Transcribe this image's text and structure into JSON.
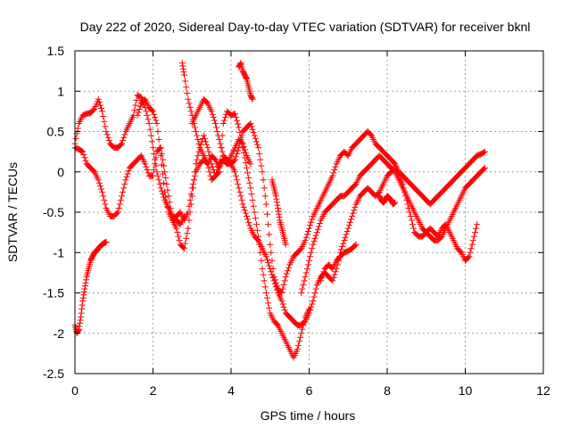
{
  "chart_data": {
    "type": "scatter",
    "title": "Day 222 of 2020, Sidereal Day-to-day VTEC variation (SDTVAR) for receiver bknl",
    "xlabel": "GPS time / hours",
    "ylabel": "SDTVAR / TECUs",
    "xlim": [
      0,
      12
    ],
    "ylim": [
      -2.5,
      1.5
    ],
    "xticks": [
      0,
      2,
      4,
      6,
      8,
      10,
      12
    ],
    "yticks": [
      -2.5,
      -2,
      -1.5,
      -1,
      -0.5,
      0,
      0.5,
      1,
      1.5
    ],
    "grid": true,
    "marker": "+",
    "color": "#ff0000",
    "series": [
      {
        "x": [
          0.0,
          0.1,
          0.2,
          0.3,
          0.4,
          0.5,
          0.6,
          0.7,
          0.8,
          0.9,
          1.0,
          1.1,
          1.2,
          1.3,
          1.4,
          1.5,
          1.6,
          1.7,
          1.8,
          1.9,
          2.0,
          2.1,
          2.2,
          2.3,
          2.4,
          2.5,
          2.6,
          2.7,
          2.8
        ],
        "y": [
          0.35,
          0.6,
          0.7,
          0.72,
          0.73,
          0.78,
          0.9,
          0.75,
          0.5,
          0.35,
          0.3,
          0.3,
          0.35,
          0.5,
          0.6,
          0.7,
          0.95,
          0.92,
          0.8,
          0.6,
          0.3,
          0.0,
          -0.2,
          -0.35,
          -0.45,
          -0.55,
          -0.6,
          -0.65,
          -0.55
        ]
      },
      {
        "x": [
          0.0,
          0.1,
          0.2,
          0.3,
          0.4,
          0.5,
          0.6,
          0.7,
          0.8,
          0.9,
          1.0,
          1.1,
          1.2,
          1.3,
          1.4,
          1.5,
          1.6,
          1.7,
          1.8,
          1.9,
          2.0,
          2.1,
          2.2,
          2.3,
          2.4,
          2.5,
          2.6,
          2.7,
          2.8,
          2.9,
          3.0,
          3.1,
          3.2,
          3.3,
          3.4,
          3.5,
          3.6,
          3.7,
          3.8,
          3.9,
          4.0,
          4.1,
          4.2,
          4.3,
          4.4,
          4.5,
          4.6,
          4.7,
          4.8,
          4.9,
          5.0,
          5.1,
          5.2,
          5.3,
          5.4,
          5.5,
          5.6,
          5.7,
          5.8,
          5.9,
          6.0
        ],
        "y": [
          0.3,
          0.28,
          0.25,
          0.1,
          0.05,
          0.0,
          -0.1,
          -0.25,
          -0.45,
          -0.55,
          -0.55,
          -0.5,
          -0.3,
          -0.1,
          0.05,
          0.1,
          0.15,
          0.2,
          0.1,
          -0.05,
          -0.05,
          0.25,
          0.3,
          0.0,
          -0.3,
          -0.6,
          -0.7,
          -0.9,
          -0.95,
          -0.7,
          -0.3,
          0.1,
          0.3,
          0.45,
          0.3,
          0.1,
          -0.05,
          0.0,
          0.6,
          0.75,
          0.7,
          0.72,
          0.55,
          0.3,
          0.05,
          -0.2,
          -0.5,
          -0.8,
          -1.2,
          -1.5,
          -1.75,
          -1.85,
          -1.9,
          -2.0,
          -2.1,
          -2.2,
          -2.3,
          -2.2,
          -2.0,
          -1.8,
          -1.7
        ]
      },
      {
        "x": [
          1.6,
          1.7,
          1.8,
          1.9,
          2.0,
          2.1,
          2.2,
          2.3,
          2.4,
          2.5,
          2.6,
          2.7,
          2.8,
          2.9,
          3.0,
          3.1,
          3.2,
          3.3,
          3.4,
          3.5,
          3.6,
          3.7,
          3.8,
          3.9,
          4.0,
          4.1,
          4.2,
          4.3,
          4.4,
          4.5
        ],
        "y": [
          0.7,
          0.85,
          0.9,
          0.8,
          0.75,
          0.6,
          0.2,
          -0.25,
          -0.5,
          -0.6,
          -0.55,
          -0.5,
          -0.6,
          -0.5,
          -0.2,
          0.0,
          0.1,
          0.15,
          0.1,
          0.2,
          0.15,
          0.05,
          0.15,
          0.1,
          0.2,
          0.3,
          0.4,
          0.35,
          0.2,
          0.1
        ]
      },
      {
        "x": [
          2.75,
          2.8,
          2.9,
          3.0,
          3.1,
          3.2,
          3.3,
          3.4,
          3.5,
          3.6,
          3.7,
          3.8,
          3.9,
          4.0,
          4.1,
          4.2,
          4.3,
          4.4,
          4.5,
          4.6,
          4.7,
          4.8,
          4.9,
          5.0,
          5.1,
          5.2,
          5.3,
          5.4,
          5.5,
          5.6,
          5.7,
          5.8,
          5.9,
          6.0,
          6.1,
          6.2,
          6.3,
          6.4,
          6.5,
          6.6,
          6.7,
          6.8,
          6.9,
          7.0,
          7.1,
          7.2,
          7.3,
          7.4,
          7.5,
          7.6,
          7.7,
          7.8,
          7.9,
          8.0,
          8.1,
          8.2,
          8.3,
          8.4,
          8.5,
          8.6,
          8.7,
          8.8,
          8.9,
          9.0,
          9.1,
          9.2,
          9.3,
          9.4,
          9.5,
          9.6,
          9.7,
          9.8,
          9.9,
          10.0,
          10.1,
          10.2,
          10.3
        ],
        "y": [
          1.35,
          1.2,
          0.9,
          0.7,
          0.5,
          0.3,
          0.2,
          0.1,
          -0.1,
          -0.05,
          0.1,
          0.15,
          0.1,
          0.1,
          0.0,
          -0.2,
          -0.4,
          -0.55,
          -0.7,
          -0.8,
          -0.85,
          -0.95,
          -1.05,
          -1.2,
          -1.35,
          -1.5,
          -1.6,
          -1.75,
          -1.8,
          -1.85,
          -1.9,
          -1.9,
          -1.85,
          -1.75,
          -1.6,
          -1.4,
          -1.3,
          -1.25,
          -1.3,
          -1.35,
          -1.2,
          -1.0,
          -0.85,
          -0.7,
          -0.55,
          -0.4,
          -0.3,
          -0.25,
          -0.2,
          -0.25,
          -0.3,
          -0.25,
          -0.15,
          -0.05,
          0.0,
          0.05,
          -0.05,
          -0.15,
          -0.35,
          -0.55,
          -0.75,
          -0.8,
          -0.8,
          -0.75,
          -0.7,
          -0.75,
          -0.8,
          -0.7,
          -0.65,
          -0.75,
          -0.85,
          -0.95,
          -1.0,
          -1.1,
          -1.05,
          -0.85,
          -0.65
        ]
      },
      {
        "x": [
          0.0,
          0.05,
          0.1,
          0.15,
          0.2,
          0.25,
          0.3,
          0.35,
          0.4,
          0.45,
          0.5,
          0.55,
          0.6,
          0.65,
          0.7,
          0.75,
          0.8
        ],
        "y": [
          -1.9,
          -2.0,
          -1.95,
          -1.8,
          -1.6,
          -1.45,
          -1.3,
          -1.2,
          -1.1,
          -1.05,
          -1.0,
          -0.98,
          -0.95,
          -0.92,
          -0.9,
          -0.88,
          -0.87
        ]
      },
      {
        "x": [
          4.2,
          4.25,
          4.3,
          4.35,
          4.4,
          4.45,
          4.5,
          4.55
        ],
        "y": [
          1.3,
          1.35,
          1.25,
          1.2,
          1.15,
          1.05,
          0.95,
          0.9
        ]
      },
      {
        "x": [
          3.0,
          3.1,
          3.2,
          3.3,
          3.4,
          3.5,
          3.6,
          3.7,
          3.8,
          3.9,
          4.0,
          4.1,
          4.2,
          4.3,
          4.4,
          4.5,
          4.6,
          4.7,
          4.8,
          4.9,
          5.0,
          5.1,
          5.2,
          5.3,
          5.4,
          5.5,
          5.6,
          5.7,
          5.8,
          5.9,
          6.0,
          6.1,
          6.2,
          6.3,
          6.4,
          6.5,
          6.6,
          6.7,
          6.8,
          6.9,
          7.0,
          7.1,
          7.2,
          7.3,
          7.4,
          7.5,
          7.6,
          7.7,
          7.8,
          7.9,
          8.0,
          8.1,
          8.2,
          8.3,
          8.4,
          8.5,
          8.6,
          8.7,
          8.8,
          8.9,
          9.0,
          9.1,
          9.2,
          9.3,
          9.4,
          9.5,
          9.6,
          9.7,
          9.8,
          9.9,
          10.0,
          10.1,
          10.2,
          10.3,
          10.4,
          10.5
        ],
        "y": [
          0.6,
          0.7,
          0.8,
          0.9,
          0.85,
          0.75,
          0.6,
          0.4,
          0.2,
          0.15,
          0.1,
          0.15,
          0.3,
          0.5,
          0.55,
          0.6,
          0.45,
          0.3,
          0.0,
          -0.4,
          -0.9,
          -1.3,
          -1.45,
          -1.5,
          -1.3,
          -1.15,
          -1.05,
          -1.0,
          -0.95,
          -0.85,
          -0.7,
          -0.55,
          -0.45,
          -0.35,
          -0.25,
          -0.15,
          -0.05,
          0.1,
          0.2,
          0.25,
          0.2,
          0.3,
          0.35,
          0.4,
          0.45,
          0.5,
          0.45,
          0.35,
          0.3,
          0.25,
          0.2,
          0.15,
          0.1,
          0.0,
          -0.05,
          -0.1,
          -0.15,
          -0.2,
          -0.25,
          -0.3,
          -0.35,
          -0.4,
          -0.35,
          -0.3,
          -0.25,
          -0.2,
          -0.15,
          -0.1,
          -0.05,
          0.0,
          0.05,
          0.1,
          0.15,
          0.2,
          0.22,
          0.25
        ]
      },
      {
        "x": [
          5.8,
          5.9,
          6.0,
          6.1,
          6.2,
          6.3,
          6.4,
          6.5,
          6.6,
          6.7,
          6.8,
          6.9,
          7.0,
          7.1,
          7.2,
          7.3,
          7.4,
          7.5,
          7.6,
          7.7,
          7.8,
          7.9,
          8.0,
          8.1,
          8.2,
          8.3,
          8.4,
          8.5,
          8.6,
          8.7,
          8.8,
          8.9,
          9.0,
          9.1,
          9.2,
          9.3,
          9.4,
          9.5,
          9.6,
          9.7,
          9.8,
          9.9,
          10.0,
          10.1,
          10.2,
          10.3,
          10.4,
          10.5
        ],
        "y": [
          -1.5,
          -1.3,
          -1.1,
          -0.9,
          -0.75,
          -0.6,
          -0.5,
          -0.45,
          -0.4,
          -0.35,
          -0.3,
          -0.3,
          -0.25,
          -0.2,
          -0.15,
          -0.05,
          0.0,
          0.05,
          0.1,
          0.15,
          0.2,
          0.15,
          0.1,
          0.05,
          0.0,
          -0.1,
          -0.2,
          -0.3,
          -0.4,
          -0.5,
          -0.6,
          -0.7,
          -0.75,
          -0.8,
          -0.85,
          -0.85,
          -0.8,
          -0.7,
          -0.6,
          -0.5,
          -0.4,
          -0.3,
          -0.2,
          -0.15,
          -0.1,
          -0.05,
          0.0,
          0.05
        ]
      },
      {
        "x": [
          6.3,
          6.4,
          6.5,
          6.6,
          6.7,
          6.8,
          6.9,
          7.0,
          7.1,
          7.2
        ],
        "y": [
          -1.35,
          -1.2,
          -1.15,
          -1.2,
          -1.1,
          -1.05,
          -1.0,
          -0.98,
          -0.95,
          -0.9
        ]
      },
      {
        "x": [
          7.8,
          7.85,
          7.9,
          7.95,
          8.0,
          8.05,
          8.1,
          8.15,
          8.2
        ],
        "y": [
          -0.3,
          -0.35,
          -0.38,
          -0.35,
          -0.3,
          -0.32,
          -0.35,
          -0.4,
          -0.38
        ]
      },
      {
        "x": [
          5.05,
          5.1,
          5.15,
          5.2,
          5.25,
          5.3,
          5.35,
          5.4
        ],
        "y": [
          -0.1,
          -0.2,
          -0.3,
          -0.45,
          -0.6,
          -0.7,
          -0.8,
          -0.9
        ]
      }
    ]
  }
}
